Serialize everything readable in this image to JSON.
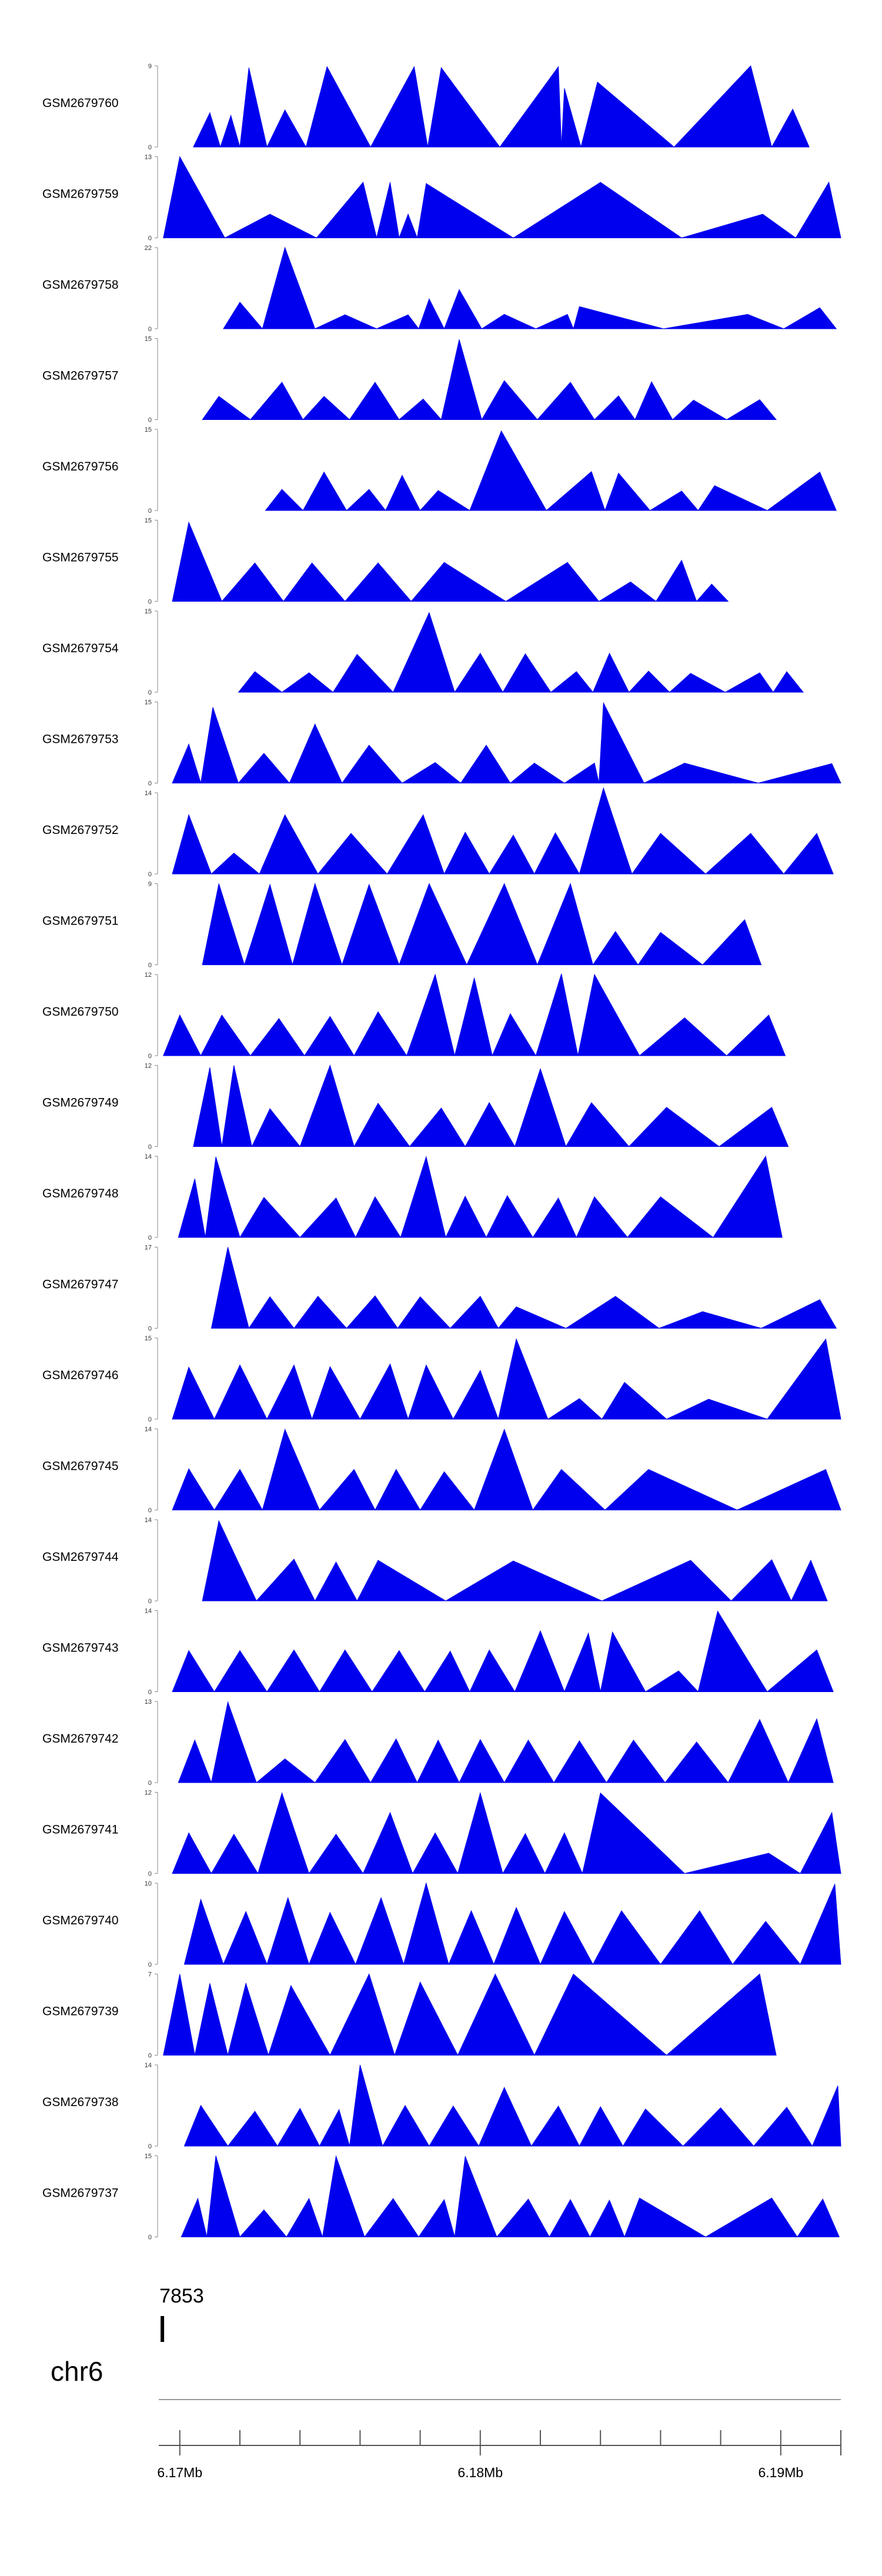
{
  "colors": {
    "track_fill": "#0000ee",
    "axis": "#555555",
    "text": "#000000"
  },
  "chart_data": {
    "type": "area",
    "x_unit": "Mb",
    "xlim": [
      6.1693,
      6.192
    ],
    "tracks": [
      {
        "name": "GSM2679760",
        "ymax": 9,
        "peaks": [
          [
            6.171,
            3.8
          ],
          [
            6.1717,
            3.5
          ],
          [
            6.1723,
            8.8
          ],
          [
            6.1735,
            4.1
          ],
          [
            6.1749,
            8.9
          ],
          [
            6.1778,
            8.9
          ],
          [
            6.1787,
            8.8
          ],
          [
            6.1826,
            8.9
          ],
          [
            6.1828,
            6.5
          ],
          [
            6.1839,
            7.2
          ],
          [
            6.189,
            9.0
          ],
          [
            6.1904,
            4.2
          ]
        ]
      },
      {
        "name": "GSM2679759",
        "ymax": 13,
        "peaks": [
          [
            6.17,
            13
          ],
          [
            6.173,
            3.8
          ],
          [
            6.1761,
            8.9
          ],
          [
            6.177,
            8.9
          ],
          [
            6.1776,
            3.8
          ],
          [
            6.1782,
            8.7
          ],
          [
            6.184,
            8.9
          ],
          [
            6.1894,
            3.8
          ],
          [
            6.1916,
            8.9
          ]
        ]
      },
      {
        "name": "GSM2679758",
        "ymax": 22,
        "peaks": [
          [
            6.172,
            7.2
          ],
          [
            6.1735,
            22
          ],
          [
            6.1755,
            3.8
          ],
          [
            6.1776,
            3.8
          ],
          [
            6.1783,
            8.1
          ],
          [
            6.1793,
            10.6
          ],
          [
            6.1808,
            3.9
          ],
          [
            6.1829,
            3.9
          ],
          [
            6.1833,
            6.0
          ],
          [
            6.1889,
            3.9
          ],
          [
            6.1913,
            5.7
          ]
        ]
      },
      {
        "name": "GSM2679757",
        "ymax": 15,
        "peaks": [
          [
            6.1713,
            4.3
          ],
          [
            6.1734,
            6.9
          ],
          [
            6.1748,
            4.3
          ],
          [
            6.1765,
            6.9
          ],
          [
            6.1781,
            3.8
          ],
          [
            6.1793,
            14.8
          ],
          [
            6.1808,
            7.2
          ],
          [
            6.183,
            6.9
          ],
          [
            6.1846,
            4.4
          ],
          [
            6.1857,
            7.0
          ],
          [
            6.1871,
            3.6
          ],
          [
            6.1893,
            3.7
          ]
        ]
      },
      {
        "name": "GSM2679756",
        "ymax": 15,
        "peaks": [
          [
            6.1734,
            3.9
          ],
          [
            6.1748,
            7.1
          ],
          [
            6.1763,
            3.9
          ],
          [
            6.1774,
            6.5
          ],
          [
            6.1786,
            3.7
          ],
          [
            6.1807,
            14.7
          ],
          [
            6.1837,
            7.2
          ],
          [
            6.1846,
            6.9
          ],
          [
            6.1867,
            3.6
          ],
          [
            6.1878,
            4.6
          ],
          [
            6.1913,
            7.1
          ]
        ]
      },
      {
        "name": "GSM2679755",
        "ymax": 15,
        "peaks": [
          [
            6.1703,
            14.6
          ],
          [
            6.1725,
            7.1
          ],
          [
            6.1744,
            7.1
          ],
          [
            6.1766,
            7.1
          ],
          [
            6.1788,
            7.2
          ],
          [
            6.1829,
            7.2
          ],
          [
            6.185,
            3.6
          ],
          [
            6.1867,
            7.6
          ],
          [
            6.1877,
            3.2
          ]
        ]
      },
      {
        "name": "GSM2679754",
        "ymax": 15,
        "peaks": [
          [
            6.1725,
            3.8
          ],
          [
            6.1743,
            3.6
          ],
          [
            6.1759,
            7.0
          ],
          [
            6.1783,
            14.7
          ],
          [
            6.18,
            7.2
          ],
          [
            6.1815,
            7.1
          ],
          [
            6.1832,
            3.8
          ],
          [
            6.1843,
            7.2
          ],
          [
            6.1856,
            3.9
          ],
          [
            6.187,
            3.5
          ],
          [
            6.1893,
            3.6
          ],
          [
            6.1902,
            3.8
          ]
        ]
      },
      {
        "name": "GSM2679753",
        "ymax": 15,
        "peaks": [
          [
            6.1703,
            7.2
          ],
          [
            6.1711,
            14.0
          ],
          [
            6.1728,
            5.5
          ],
          [
            6.1745,
            10.9
          ],
          [
            6.1763,
            7.0
          ],
          [
            6.1785,
            3.8
          ],
          [
            6.1802,
            7.0
          ],
          [
            6.1818,
            3.7
          ],
          [
            6.1838,
            3.7
          ],
          [
            6.1841,
            14.8
          ],
          [
            6.1868,
            3.7
          ],
          [
            6.1917,
            3.6
          ]
        ]
      },
      {
        "name": "GSM2679752",
        "ymax": 14,
        "peaks": [
          [
            6.1703,
            10.2
          ],
          [
            6.1718,
            3.6
          ],
          [
            6.1735,
            10.2
          ],
          [
            6.1757,
            7.0
          ],
          [
            6.1781,
            10.2
          ],
          [
            6.1795,
            7.2
          ],
          [
            6.1811,
            6.7
          ],
          [
            6.1825,
            7.1
          ],
          [
            6.1841,
            14.8
          ],
          [
            6.186,
            7.0
          ],
          [
            6.189,
            7.0
          ],
          [
            6.1912,
            7.0
          ]
        ]
      },
      {
        "name": "GSM2679751",
        "ymax": 9,
        "peaks": [
          [
            6.1713,
            9.0
          ],
          [
            6.173,
            8.9
          ],
          [
            6.1745,
            9.0
          ],
          [
            6.1763,
            8.9
          ],
          [
            6.1783,
            9.0
          ],
          [
            6.1808,
            9.0
          ],
          [
            6.183,
            9.0
          ],
          [
            6.1845,
            3.7
          ],
          [
            6.186,
            3.6
          ],
          [
            6.1888,
            5.0
          ]
        ]
      },
      {
        "name": "GSM2679750",
        "ymax": 12,
        "peaks": [
          [
            6.17,
            6.0
          ],
          [
            6.1714,
            6.0
          ],
          [
            6.1733,
            5.5
          ],
          [
            6.175,
            5.8
          ],
          [
            6.1766,
            6.5
          ],
          [
            6.1785,
            12.0
          ],
          [
            6.1798,
            11.5
          ],
          [
            6.181,
            6.2
          ],
          [
            6.1827,
            12.1
          ],
          [
            6.1838,
            12.0
          ],
          [
            6.1868,
            5.6
          ],
          [
            6.1896,
            6.0
          ]
        ]
      },
      {
        "name": "GSM2679749",
        "ymax": 12,
        "peaks": [
          [
            6.171,
            11.7
          ],
          [
            6.1718,
            12.0
          ],
          [
            6.173,
            5.6
          ],
          [
            6.175,
            12.0
          ],
          [
            6.1766,
            6.4
          ],
          [
            6.1787,
            5.7
          ],
          [
            6.1803,
            6.5
          ],
          [
            6.182,
            11.5
          ],
          [
            6.1837,
            6.5
          ],
          [
            6.1862,
            5.8
          ],
          [
            6.1897,
            5.8
          ]
        ]
      },
      {
        "name": "GSM2679748",
        "ymax": 14,
        "peaks": [
          [
            6.1705,
            10.1
          ],
          [
            6.1712,
            13.9
          ],
          [
            6.1728,
            6.9
          ],
          [
            6.1752,
            6.8
          ],
          [
            6.1765,
            7.0
          ],
          [
            6.1782,
            13.9
          ],
          [
            6.1795,
            7.1
          ],
          [
            6.1809,
            7.2
          ],
          [
            6.1826,
            6.8
          ],
          [
            6.1838,
            7.0
          ],
          [
            6.186,
            7.0
          ],
          [
            6.1895,
            14.0
          ]
        ]
      },
      {
        "name": "GSM2679747",
        "ymax": 17,
        "peaks": [
          [
            6.1716,
            17.0
          ],
          [
            6.173,
            6.6
          ],
          [
            6.1746,
            6.7
          ],
          [
            6.1765,
            6.8
          ],
          [
            6.178,
            6.6
          ],
          [
            6.18,
            6.7
          ],
          [
            6.1812,
            4.5
          ],
          [
            6.1845,
            6.7
          ],
          [
            6.1874,
            3.5
          ],
          [
            6.1913,
            6.0
          ]
        ]
      },
      {
        "name": "GSM2679746",
        "ymax": 15,
        "peaks": [
          [
            6.1703,
            9.6
          ],
          [
            6.172,
            10.0
          ],
          [
            6.1738,
            10.0
          ],
          [
            6.175,
            9.7
          ],
          [
            6.177,
            10.2
          ],
          [
            6.1782,
            10.0
          ],
          [
            6.18,
            9.0
          ],
          [
            6.1812,
            14.8
          ],
          [
            6.1833,
            3.8
          ],
          [
            6.1848,
            6.8
          ],
          [
            6.1876,
            3.7
          ],
          [
            6.1915,
            14.8
          ]
        ]
      },
      {
        "name": "GSM2679745",
        "ymax": 14,
        "peaks": [
          [
            6.1703,
            7.1
          ],
          [
            6.172,
            7.0
          ],
          [
            6.1735,
            13.9
          ],
          [
            6.1758,
            7.0
          ],
          [
            6.1772,
            7.0
          ],
          [
            6.1788,
            6.6
          ],
          [
            6.1808,
            13.9
          ],
          [
            6.1827,
            7.0
          ],
          [
            6.1856,
            7.0
          ],
          [
            6.1915,
            7.0
          ]
        ]
      },
      {
        "name": "GSM2679744",
        "ymax": 14,
        "peaks": [
          [
            6.1713,
            13.8
          ],
          [
            6.1738,
            7.2
          ],
          [
            6.1752,
            6.7
          ],
          [
            6.1766,
            7.0
          ],
          [
            6.1811,
            6.9
          ],
          [
            6.187,
            7.0
          ],
          [
            6.1897,
            7.1
          ],
          [
            6.191,
            7.0
          ]
        ]
      },
      {
        "name": "GSM2679743",
        "ymax": 14,
        "peaks": [
          [
            6.1703,
            7.1
          ],
          [
            6.172,
            7.1
          ],
          [
            6.1738,
            7.2
          ],
          [
            6.1755,
            7.2
          ],
          [
            6.1773,
            7.1
          ],
          [
            6.179,
            7.0
          ],
          [
            6.1803,
            7.2
          ],
          [
            6.182,
            10.5
          ],
          [
            6.1836,
            10.1
          ],
          [
            6.1844,
            10.3
          ],
          [
            6.1866,
            3.6
          ],
          [
            6.1879,
            13.9
          ],
          [
            6.1912,
            7.2
          ]
        ]
      },
      {
        "name": "GSM2679742",
        "ymax": 13,
        "peaks": [
          [
            6.1705,
            6.8
          ],
          [
            6.1716,
            12.9
          ],
          [
            6.1735,
            3.8
          ],
          [
            6.1755,
            6.9
          ],
          [
            6.1772,
            7.0
          ],
          [
            6.1786,
            6.8
          ],
          [
            6.18,
            6.9
          ],
          [
            6.1816,
            6.8
          ],
          [
            6.1833,
            6.7
          ],
          [
            6.1851,
            6.8
          ],
          [
            6.1872,
            6.5
          ],
          [
            6.1893,
            10.1
          ],
          [
            6.1912,
            10.2
          ]
        ]
      },
      {
        "name": "GSM2679741",
        "ymax": 12,
        "peaks": [
          [
            6.1703,
            6.0
          ],
          [
            6.1718,
            5.8
          ],
          [
            6.1734,
            11.9
          ],
          [
            6.1752,
            5.8
          ],
          [
            6.177,
            9.0
          ],
          [
            6.1785,
            6.0
          ],
          [
            6.18,
            11.9
          ],
          [
            6.1815,
            5.9
          ],
          [
            6.1828,
            6.0
          ],
          [
            6.184,
            11.9
          ],
          [
            6.1896,
            3.0
          ],
          [
            6.1917,
            9.0
          ]
        ]
      },
      {
        "name": "GSM2679740",
        "ymax": 10,
        "peaks": [
          [
            6.1707,
            8.0
          ],
          [
            6.1722,
            6.5
          ],
          [
            6.1736,
            8.2
          ],
          [
            6.175,
            6.4
          ],
          [
            6.1767,
            8.2
          ],
          [
            6.1782,
            10.0
          ],
          [
            6.1797,
            6.6
          ],
          [
            6.1812,
            7.0
          ],
          [
            6.1828,
            6.5
          ],
          [
            6.1847,
            6.6
          ],
          [
            6.1873,
            6.6
          ],
          [
            6.1895,
            5.3
          ],
          [
            6.1918,
            9.9
          ]
        ]
      },
      {
        "name": "GSM2679739",
        "ymax": 7,
        "peaks": [
          [
            6.17,
            7.0
          ],
          [
            6.171,
            6.2
          ],
          [
            6.1722,
            6.2
          ],
          [
            6.1737,
            6.0
          ],
          [
            6.1763,
            7.0
          ],
          [
            6.178,
            6.3
          ],
          [
            6.1805,
            7.0
          ],
          [
            6.1831,
            7.0
          ],
          [
            6.1893,
            7.0
          ]
        ]
      },
      {
        "name": "GSM2679738",
        "ymax": 14,
        "peaks": [
          [
            6.1707,
            7.0
          ],
          [
            6.1725,
            6.0
          ],
          [
            6.174,
            6.5
          ],
          [
            6.1753,
            6.3
          ],
          [
            6.176,
            14.0
          ],
          [
            6.1775,
            7.0
          ],
          [
            6.1791,
            6.9
          ],
          [
            6.1808,
            10.1
          ],
          [
            6.1826,
            6.9
          ],
          [
            6.184,
            6.8
          ],
          [
            6.1855,
            6.4
          ],
          [
            6.188,
            6.6
          ],
          [
            6.1902,
            6.7
          ],
          [
            6.1919,
            10.4
          ]
        ]
      },
      {
        "name": "GSM2679737",
        "ymax": 15,
        "peaks": [
          [
            6.1706,
            7.1
          ],
          [
            6.1712,
            15.0
          ],
          [
            6.1728,
            5.0
          ],
          [
            6.1743,
            7.1
          ],
          [
            6.1752,
            14.9
          ],
          [
            6.1771,
            7.1
          ],
          [
            6.1788,
            6.9
          ],
          [
            6.1795,
            14.9
          ],
          [
            6.1816,
            7.0
          ],
          [
            6.183,
            6.9
          ],
          [
            6.1843,
            6.8
          ],
          [
            6.1853,
            7.2
          ],
          [
            6.1897,
            7.2
          ],
          [
            6.1914,
            7.0
          ]
        ]
      }
    ],
    "y_min_label": "0",
    "x_ticks": [
      6.17,
      6.18,
      6.19
    ],
    "x_tick_labels": [
      "6.17Mb",
      "6.18Mb",
      "6.19Mb"
    ],
    "feature": {
      "label": "7853",
      "position": 6.1694
    },
    "chromosome": "chr6"
  }
}
